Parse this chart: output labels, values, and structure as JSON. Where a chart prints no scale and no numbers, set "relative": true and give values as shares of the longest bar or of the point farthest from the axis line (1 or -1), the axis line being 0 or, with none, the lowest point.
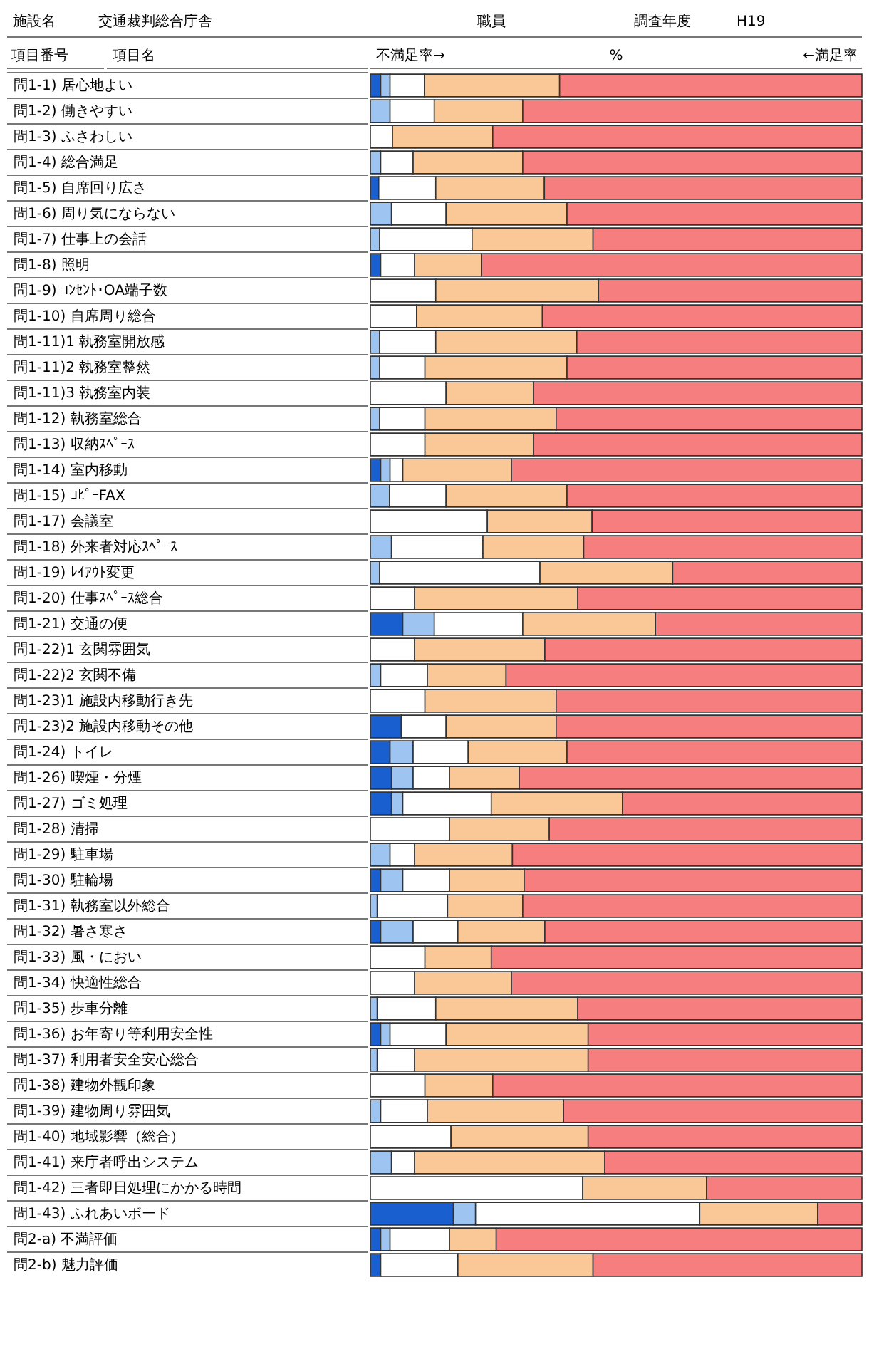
{
  "chart_data": {
    "type": "bar",
    "orientation": "horizontal",
    "stacked": true,
    "relative": true,
    "legend": false,
    "annotations": [
      "施設名",
      "交通裁判総合庁舎",
      "職員",
      "調査年度",
      "H19",
      "項目番号",
      "項目名",
      "不満足率→",
      "%",
      "←満足率"
    ],
    "categories": [
      "問1-1) 居心地よい",
      "問1-2) 働きやすい",
      "問1-3) ふさわしい",
      "問1-4) 総合満足",
      "問1-5) 自席回り広さ",
      "問1-6) 周り気にならない",
      "問1-7) 仕事上の会話",
      "問1-8) 照明",
      "問1-9) ｺﾝｾﾝﾄ･OA端子数",
      "問1-10) 自席周り総合",
      "問1-11)1 執務室開放感",
      "問1-11)2 執務室整然",
      "問1-11)3 執務室内装",
      "問1-12) 執務室総合",
      "問1-13) 収納ｽﾍﾟｰｽ",
      "問1-14) 室内移動",
      "問1-15) ｺﾋﾟｰFAX",
      "問1-17) 会議室",
      "問1-18) 外来者対応ｽﾍﾟｰｽ",
      "問1-19) ﾚｲｱｳﾄ変更",
      "問1-20) 仕事ｽﾍﾟｰｽ総合",
      "問1-21) 交通の便",
      "問1-22)1 玄関雰囲気",
      "問1-22)2 玄関不備",
      "問1-23)1 施設内移動行き先",
      "問1-23)2 施設内移動その他",
      "問1-24) トイレ",
      "問1-26) 喫煙・分煙",
      "問1-27) ゴミ処理",
      "問1-28) 清掃",
      "問1-29) 駐車場",
      "問1-30) 駐輪場",
      "問1-31) 執務室以外総合",
      "問1-32) 暑さ寒さ",
      "問1-33) 風・におい",
      "問1-34) 快適性総合",
      "問1-35) 歩車分離",
      "問1-36) お年寄り等利用安全性",
      "問1-37) 利用者安全安心総合",
      "問1-38) 建物外観印象",
      "問1-39) 建物周り雰囲気",
      "問1-40) 地域影響（総合）",
      "問1-41) 来庁者呼出システム",
      "問1-42) 三者即日処理にかかる時間",
      "問1-43) ふれあいボード",
      "問2-a) 不満評価",
      "問2-b) 魅力評価"
    ],
    "series": [
      {
        "color": "#1a5fcf",
        "values": [
          0.021,
          0,
          0,
          0,
          0.017,
          0,
          0,
          0.021,
          0,
          0,
          0,
          0,
          0,
          0,
          0,
          0.021,
          0,
          0,
          0,
          0,
          0,
          0.066,
          0,
          0,
          0,
          0.063,
          0.04,
          0.043,
          0.043,
          0,
          0,
          0.021,
          0,
          0.021,
          0,
          0,
          0,
          0.021,
          0,
          0,
          0,
          0,
          0,
          0,
          0.169,
          0.021,
          0.021
        ]
      },
      {
        "color": "#9ec5f2",
        "values": [
          0.019,
          0.04,
          0,
          0.021,
          0,
          0.043,
          0.019,
          0,
          0,
          0,
          0.019,
          0.019,
          0,
          0.019,
          0,
          0.019,
          0.039,
          0,
          0.043,
          0.019,
          0,
          0.064,
          0,
          0.021,
          0,
          0,
          0.047,
          0.044,
          0.023,
          0,
          0.04,
          0.045,
          0.014,
          0.066,
          0,
          0,
          0.014,
          0.019,
          0.014,
          0,
          0.021,
          0,
          0.043,
          0,
          0.045,
          0.019,
          0
        ]
      },
      {
        "color": "#ffffff",
        "values": [
          0.07,
          0.09,
          0.045,
          0.066,
          0.116,
          0.111,
          0.188,
          0.069,
          0.133,
          0.094,
          0.114,
          0.092,
          0.154,
          0.092,
          0.111,
          0.026,
          0.115,
          0.238,
          0.186,
          0.326,
          0.09,
          0.18,
          0.09,
          0.095,
          0.111,
          0.091,
          0.112,
          0.074,
          0.18,
          0.161,
          0.05,
          0.095,
          0.143,
          0.091,
          0.111,
          0.09,
          0.119,
          0.114,
          0.076,
          0.111,
          0.095,
          0.164,
          0.047,
          0.432,
          0.456,
          0.121,
          0.157
        ]
      },
      {
        "color": "#f9c896",
        "values": [
          0.275,
          0.18,
          0.204,
          0.223,
          0.221,
          0.246,
          0.246,
          0.136,
          0.331,
          0.256,
          0.287,
          0.289,
          0.178,
          0.267,
          0.221,
          0.221,
          0.246,
          0.213,
          0.205,
          0.27,
          0.332,
          0.27,
          0.265,
          0.16,
          0.267,
          0.224,
          0.201,
          0.142,
          0.267,
          0.203,
          0.199,
          0.152,
          0.153,
          0.177,
          0.135,
          0.197,
          0.289,
          0.289,
          0.353,
          0.138,
          0.277,
          0.279,
          0.387,
          0.252,
          0.24,
          0.095,
          0.275
        ]
      },
      {
        "color": "#f77e7e",
        "values": [
          0.615,
          0.69,
          0.751,
          0.69,
          0.646,
          0.6,
          0.547,
          0.774,
          0.536,
          0.65,
          0.58,
          0.6,
          0.668,
          0.622,
          0.668,
          0.713,
          0.6,
          0.549,
          0.566,
          0.385,
          0.578,
          0.42,
          0.645,
          0.724,
          0.622,
          0.622,
          0.6,
          0.697,
          0.487,
          0.636,
          0.711,
          0.687,
          0.69,
          0.645,
          0.754,
          0.713,
          0.578,
          0.557,
          0.557,
          0.751,
          0.607,
          0.557,
          0.523,
          0.316,
          0.09,
          0.744,
          0.547
        ]
      }
    ]
  }
}
